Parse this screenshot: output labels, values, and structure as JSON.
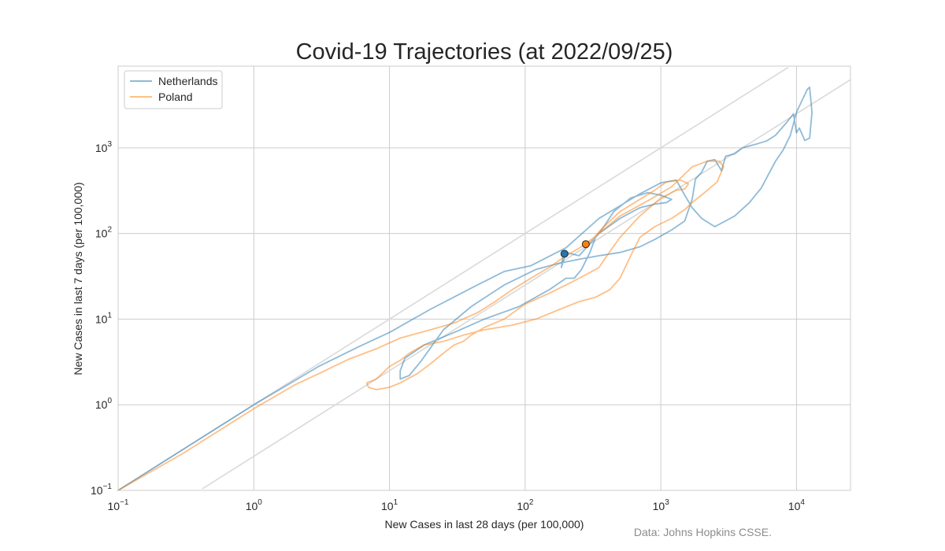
{
  "colors": {
    "netherlands": "#1f77b4",
    "poland": "#ff7f0e",
    "grid": "#cccccc",
    "reference": "#d9d9d9",
    "source": "#8c8c8c"
  },
  "chart_data": {
    "type": "line",
    "title": "Covid-19 Trajectories (at 2022/09/25)",
    "xlabel": "New Cases in last 28 days (per 100,000)",
    "ylabel": "New Cases in last 7 days (per 100,000)",
    "source": "Data: Johns Hopkins CSSE.",
    "x_scale": "log",
    "y_scale": "log",
    "xlim": [
      0.1,
      25000
    ],
    "ylim": [
      0.1,
      9000
    ],
    "x_ticks": [
      {
        "base": "10",
        "exp": "−1"
      },
      {
        "base": "10",
        "exp": "0"
      },
      {
        "base": "10",
        "exp": "1"
      },
      {
        "base": "10",
        "exp": "2"
      },
      {
        "base": "10",
        "exp": "3"
      },
      {
        "base": "10",
        "exp": "4"
      }
    ],
    "y_ticks": [
      {
        "base": "10",
        "exp": "−1"
      },
      {
        "base": "10",
        "exp": "0"
      },
      {
        "base": "10",
        "exp": "1"
      },
      {
        "base": "10",
        "exp": "2"
      },
      {
        "base": "10",
        "exp": "3"
      }
    ],
    "grid": true,
    "legend_position": "top-left",
    "reference_lines": [
      {
        "description": "all cases in last 7 days",
        "slope": 1
      },
      {
        "description": "weekly cases equal a quarter of monthly",
        "slope": 0.25
      }
    ],
    "series": [
      {
        "name": "Netherlands",
        "points": [
          [
            0.1,
            0.1
          ],
          [
            0.3,
            0.3
          ],
          [
            1,
            1
          ],
          [
            3,
            2.8
          ],
          [
            6,
            4.8
          ],
          [
            10,
            7
          ],
          [
            20,
            13
          ],
          [
            40,
            23
          ],
          [
            70,
            36
          ],
          [
            110,
            42
          ],
          [
            200,
            68
          ],
          [
            350,
            150
          ],
          [
            700,
            290
          ],
          [
            1000,
            390
          ],
          [
            1300,
            420
          ],
          [
            1500,
            280
          ],
          [
            1700,
            200
          ],
          [
            2000,
            150
          ],
          [
            2500,
            120
          ],
          [
            3500,
            160
          ],
          [
            4500,
            230
          ],
          [
            5500,
            340
          ],
          [
            7000,
            700
          ],
          [
            8000,
            950
          ],
          [
            9000,
            1400
          ],
          [
            10000,
            2600
          ],
          [
            11000,
            3600
          ],
          [
            12000,
            4800
          ],
          [
            12500,
            5100
          ],
          [
            13000,
            2600
          ],
          [
            12500,
            1300
          ],
          [
            11500,
            1220
          ],
          [
            10500,
            1700
          ],
          [
            10000,
            1500
          ],
          [
            9500,
            2500
          ],
          [
            8500,
            2000
          ],
          [
            7000,
            1400
          ],
          [
            6000,
            1200
          ],
          [
            5000,
            1100
          ],
          [
            4000,
            1000
          ],
          [
            3500,
            850
          ],
          [
            3000,
            800
          ],
          [
            2800,
            540
          ],
          [
            2500,
            730
          ],
          [
            2200,
            700
          ],
          [
            2000,
            520
          ],
          [
            1800,
            430
          ],
          [
            1700,
            250
          ],
          [
            1500,
            140
          ],
          [
            1200,
            110
          ],
          [
            900,
            85
          ],
          [
            700,
            70
          ],
          [
            500,
            60
          ],
          [
            350,
            55
          ],
          [
            250,
            50
          ],
          [
            180,
            45
          ],
          [
            120,
            38
          ],
          [
            70,
            25
          ],
          [
            40,
            14
          ],
          [
            25,
            7.5
          ],
          [
            17,
            3.2
          ],
          [
            14,
            2.2
          ],
          [
            12,
            2.0
          ],
          [
            12,
            2.5
          ],
          [
            13,
            3.5
          ],
          [
            18,
            5
          ],
          [
            30,
            7
          ],
          [
            50,
            10
          ],
          [
            90,
            14
          ],
          [
            150,
            22
          ],
          [
            200,
            30
          ],
          [
            230,
            30
          ],
          [
            260,
            38
          ],
          [
            300,
            60
          ],
          [
            330,
            90
          ],
          [
            380,
            120
          ],
          [
            450,
            180
          ],
          [
            600,
            260
          ],
          [
            800,
            300
          ],
          [
            1000,
            280
          ],
          [
            1200,
            250
          ],
          [
            1100,
            230
          ],
          [
            900,
            220
          ],
          [
            700,
            200
          ],
          [
            500,
            150
          ],
          [
            350,
            100
          ],
          [
            250,
            55
          ],
          [
            200,
            60
          ],
          [
            185,
            40
          ],
          [
            190,
            55
          ]
        ]
      },
      {
        "name": "Poland",
        "points": [
          [
            0.1,
            0.1
          ],
          [
            0.3,
            0.27
          ],
          [
            1,
            0.9
          ],
          [
            2,
            1.7
          ],
          [
            3,
            2.3
          ],
          [
            5,
            3.4
          ],
          [
            8,
            4.5
          ],
          [
            12,
            6
          ],
          [
            20,
            7.5
          ],
          [
            30,
            9
          ],
          [
            45,
            12
          ],
          [
            60,
            16
          ],
          [
            80,
            22
          ],
          [
            110,
            30
          ],
          [
            150,
            40
          ],
          [
            200,
            55
          ],
          [
            260,
            70
          ],
          [
            350,
            100
          ],
          [
            500,
            160
          ],
          [
            800,
            240
          ],
          [
            1200,
            350
          ],
          [
            1700,
            600
          ],
          [
            2200,
            700
          ],
          [
            2700,
            700
          ],
          [
            2900,
            600
          ],
          [
            2600,
            400
          ],
          [
            2100,
            300
          ],
          [
            1700,
            230
          ],
          [
            1500,
            190
          ],
          [
            1200,
            150
          ],
          [
            900,
            120
          ],
          [
            700,
            90
          ],
          [
            600,
            55
          ],
          [
            500,
            30
          ],
          [
            420,
            22
          ],
          [
            330,
            18
          ],
          [
            250,
            16
          ],
          [
            180,
            13
          ],
          [
            120,
            10
          ],
          [
            80,
            8.5
          ],
          [
            50,
            7.5
          ],
          [
            35,
            6.5
          ],
          [
            25,
            5.5
          ],
          [
            18,
            5
          ],
          [
            14,
            4
          ],
          [
            12,
            3.3
          ],
          [
            10,
            2.8
          ],
          [
            8,
            2.0
          ],
          [
            6.8,
            1.8
          ],
          [
            7,
            1.6
          ],
          [
            8,
            1.5
          ],
          [
            10,
            1.6
          ],
          [
            12,
            1.8
          ],
          [
            16,
            2.3
          ],
          [
            20,
            3.0
          ],
          [
            25,
            4.0
          ],
          [
            30,
            5.0
          ],
          [
            35,
            5.5
          ],
          [
            40,
            6.5
          ],
          [
            50,
            8
          ],
          [
            70,
            10
          ],
          [
            100,
            15
          ],
          [
            150,
            20
          ],
          [
            200,
            25
          ],
          [
            250,
            30
          ],
          [
            300,
            35
          ],
          [
            350,
            40
          ],
          [
            400,
            55
          ],
          [
            500,
            90
          ],
          [
            700,
            160
          ],
          [
            1000,
            260
          ],
          [
            1300,
            320
          ],
          [
            1500,
            330
          ],
          [
            1600,
            380
          ],
          [
            1400,
            420
          ],
          [
            1100,
            400
          ],
          [
            900,
            320
          ],
          [
            700,
            250
          ],
          [
            500,
            180
          ],
          [
            380,
            120
          ],
          [
            300,
            80
          ],
          [
            270,
            70
          ],
          [
            280,
            76
          ]
        ]
      }
    ],
    "current_markers": [
      {
        "name": "Netherlands",
        "x": 195,
        "y": 58
      },
      {
        "name": "Poland",
        "x": 280,
        "y": 75
      }
    ]
  }
}
